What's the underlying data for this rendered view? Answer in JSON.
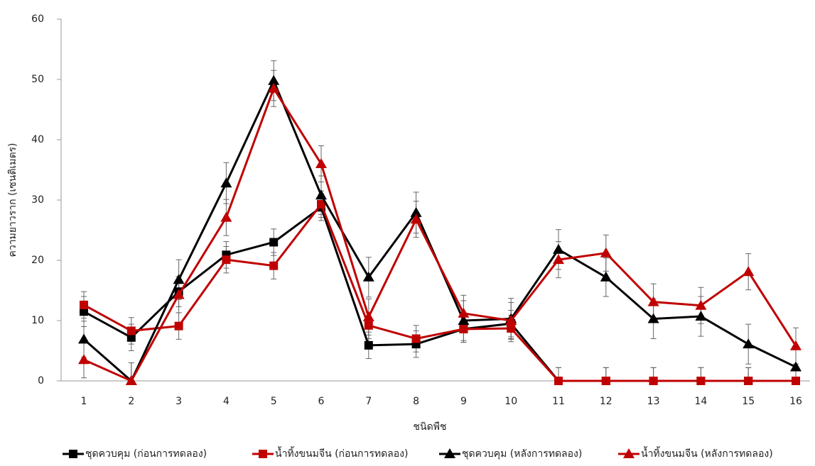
{
  "chart_data": {
    "type": "line",
    "x_label": "ชนิดพืช",
    "y_label": "ความยาวราก (เซนติเมตร)",
    "categories": [
      "1",
      "2",
      "3",
      "4",
      "5",
      "6",
      "7",
      "8",
      "9",
      "10",
      "11",
      "12",
      "13",
      "14",
      "15",
      "16"
    ],
    "ylim": [
      0,
      60
    ],
    "yticks": [
      0,
      10,
      20,
      30,
      40,
      50,
      60
    ],
    "legend": "bottom",
    "series": [
      {
        "name": "ชุดควบคุม (ก่อนการทดลอง)",
        "color": "#000000",
        "marker": "square",
        "values": [
          11.5,
          7.2,
          14.8,
          20.9,
          23,
          28.8,
          5.9,
          6.1,
          8.6,
          9.5,
          0,
          0,
          0,
          0,
          0,
          0
        ],
        "errors": [
          2.5,
          2.2,
          2.5,
          2.2,
          2.2,
          2.2,
          2.2,
          2.2,
          2.2,
          2.2,
          2.2,
          2.2,
          2.2,
          2.2,
          2.2,
          2.2
        ]
      },
      {
        "name": "น้ำทิ้งขนมจีน (ก่อนการทดลอง)",
        "color": "#c00000",
        "marker": "square",
        "values": [
          12.6,
          8.3,
          9.1,
          20.1,
          19.1,
          29.3,
          9.2,
          7,
          8.6,
          8.7,
          0,
          0,
          0,
          0,
          0,
          0
        ],
        "errors": [
          2.2,
          2.2,
          2.2,
          2.2,
          2.2,
          2.2,
          2.2,
          2.2,
          2.2,
          2.2,
          2.2,
          2.2,
          2.2,
          2.2,
          2.2,
          2.2
        ]
      },
      {
        "name": "ชุดควบคุม (หลังการทดลอง)",
        "color": "#000000",
        "marker": "triangle",
        "values": [
          6.9,
          0,
          16.8,
          32.8,
          49.8,
          30.8,
          17.2,
          27.9,
          10,
          10.3,
          21.8,
          17.2,
          10.3,
          10.7,
          6.1,
          2.3
        ],
        "errors": [
          3,
          3,
          3.3,
          3.4,
          3.3,
          3.2,
          3.3,
          3.4,
          3.3,
          3.4,
          3.3,
          3.2,
          3.3,
          3.3,
          3.3,
          3
        ]
      },
      {
        "name": "น้ำทิ้งขนมจีน (หลังการทดลอง)",
        "color": "#c00000",
        "marker": "triangle",
        "values": [
          3.5,
          0,
          14.3,
          27.1,
          48.5,
          36,
          10.6,
          26.8,
          11.2,
          10,
          20.1,
          21.2,
          13.1,
          12.5,
          18.1,
          5.8
        ],
        "errors": [
          3,
          3,
          3,
          3,
          3,
          3,
          3,
          3,
          3,
          3,
          3,
          3,
          3,
          3,
          3,
          3
        ]
      }
    ]
  }
}
